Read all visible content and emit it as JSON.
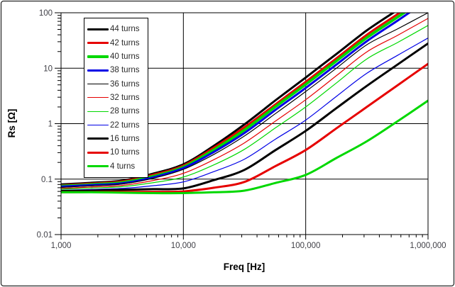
{
  "figure": {
    "background": "#ffffff",
    "border_color": "#000000"
  },
  "chart_data": {
    "type": "line",
    "title": "",
    "xlabel": "Freq [Hz]",
    "ylabel": "Rs [Ω]",
    "x_scale": "log",
    "y_scale": "log",
    "xlim": [
      1000,
      1000000
    ],
    "ylim": [
      0.01,
      100
    ],
    "grid": "major-both",
    "grid_color": "#000000",
    "legend_position": "upper-left-inside",
    "x_ticks": [
      {
        "value": 1000,
        "label": "1,000"
      },
      {
        "value": 10000,
        "label": "10,000"
      },
      {
        "value": 100000,
        "label": "100,000"
      },
      {
        "value": 1000000,
        "label": "1,000,000"
      }
    ],
    "y_ticks": [
      {
        "value": 100,
        "label": "100"
      },
      {
        "value": 10,
        "label": "10"
      },
      {
        "value": 1,
        "label": "1"
      },
      {
        "value": 0.1,
        "label": "0.1"
      },
      {
        "value": 0.01,
        "label": "0.01"
      }
    ],
    "x": [
      1000,
      1780,
      3160,
      5620,
      10000,
      17800,
      31600,
      56200,
      100000,
      178000,
      316000,
      562000,
      1000000
    ],
    "series": [
      {
        "name": "44 turns",
        "color": "#000000",
        "width": 3,
        "values": [
          0.08,
          0.086,
          0.094,
          0.125,
          0.185,
          0.4,
          0.97,
          2.6,
          6.8,
          18,
          48,
          112,
          260
        ]
      },
      {
        "name": "42 turns",
        "color": "#e60000",
        "width": 3,
        "values": [
          0.077,
          0.083,
          0.091,
          0.119,
          0.175,
          0.37,
          0.86,
          2.2,
          5.7,
          15,
          40,
          94,
          220
        ]
      },
      {
        "name": "40 turns",
        "color": "#00d800",
        "width": 3.8,
        "values": [
          0.075,
          0.08,
          0.087,
          0.112,
          0.165,
          0.34,
          0.77,
          2.0,
          5.1,
          13.5,
          35.5,
          83,
          195
        ]
      },
      {
        "name": "38 turns",
        "color": "#0000e6",
        "width": 3,
        "values": [
          0.073,
          0.078,
          0.084,
          0.107,
          0.158,
          0.31,
          0.68,
          1.75,
          4.4,
          11.6,
          30.7,
          72,
          170
        ]
      },
      {
        "name": "36 turns",
        "color": "#000000",
        "width": 1.2,
        "values": [
          0.071,
          0.076,
          0.082,
          0.103,
          0.15,
          0.28,
          0.6,
          1.5,
          3.8,
          10,
          26.5,
          51,
          100
        ]
      },
      {
        "name": "32 turns",
        "color": "#e60000",
        "width": 1.2,
        "values": [
          0.068,
          0.072,
          0.077,
          0.094,
          0.127,
          0.225,
          0.45,
          1.1,
          2.7,
          7.3,
          19.7,
          39,
          79
        ]
      },
      {
        "name": "28 turns",
        "color": "#00d800",
        "width": 1.2,
        "values": [
          0.066,
          0.069,
          0.073,
          0.086,
          0.109,
          0.181,
          0.345,
          0.83,
          2.0,
          5.4,
          14.7,
          29,
          59
        ]
      },
      {
        "name": "22 turns",
        "color": "#0000e6",
        "width": 1.2,
        "values": [
          0.063,
          0.065,
          0.068,
          0.076,
          0.089,
          0.137,
          0.229,
          0.52,
          1.16,
          3.1,
          8.1,
          17,
          35
        ]
      },
      {
        "name": "16 turns",
        "color": "#000000",
        "width": 3,
        "values": [
          0.061,
          0.062,
          0.064,
          0.066,
          0.068,
          0.096,
          0.147,
          0.33,
          0.74,
          1.9,
          4.8,
          11.6,
          28
        ]
      },
      {
        "name": "10 turns",
        "color": "#e60000",
        "width": 3,
        "values": [
          0.058,
          0.0585,
          0.059,
          0.059,
          0.06,
          0.07,
          0.089,
          0.17,
          0.335,
          0.82,
          2.0,
          4.9,
          12
        ]
      },
      {
        "name": "4 turns",
        "color": "#00d800",
        "width": 3,
        "values": [
          0.058,
          0.058,
          0.057,
          0.056,
          0.056,
          0.058,
          0.062,
          0.085,
          0.119,
          0.24,
          0.48,
          1.1,
          2.6
        ]
      }
    ]
  }
}
